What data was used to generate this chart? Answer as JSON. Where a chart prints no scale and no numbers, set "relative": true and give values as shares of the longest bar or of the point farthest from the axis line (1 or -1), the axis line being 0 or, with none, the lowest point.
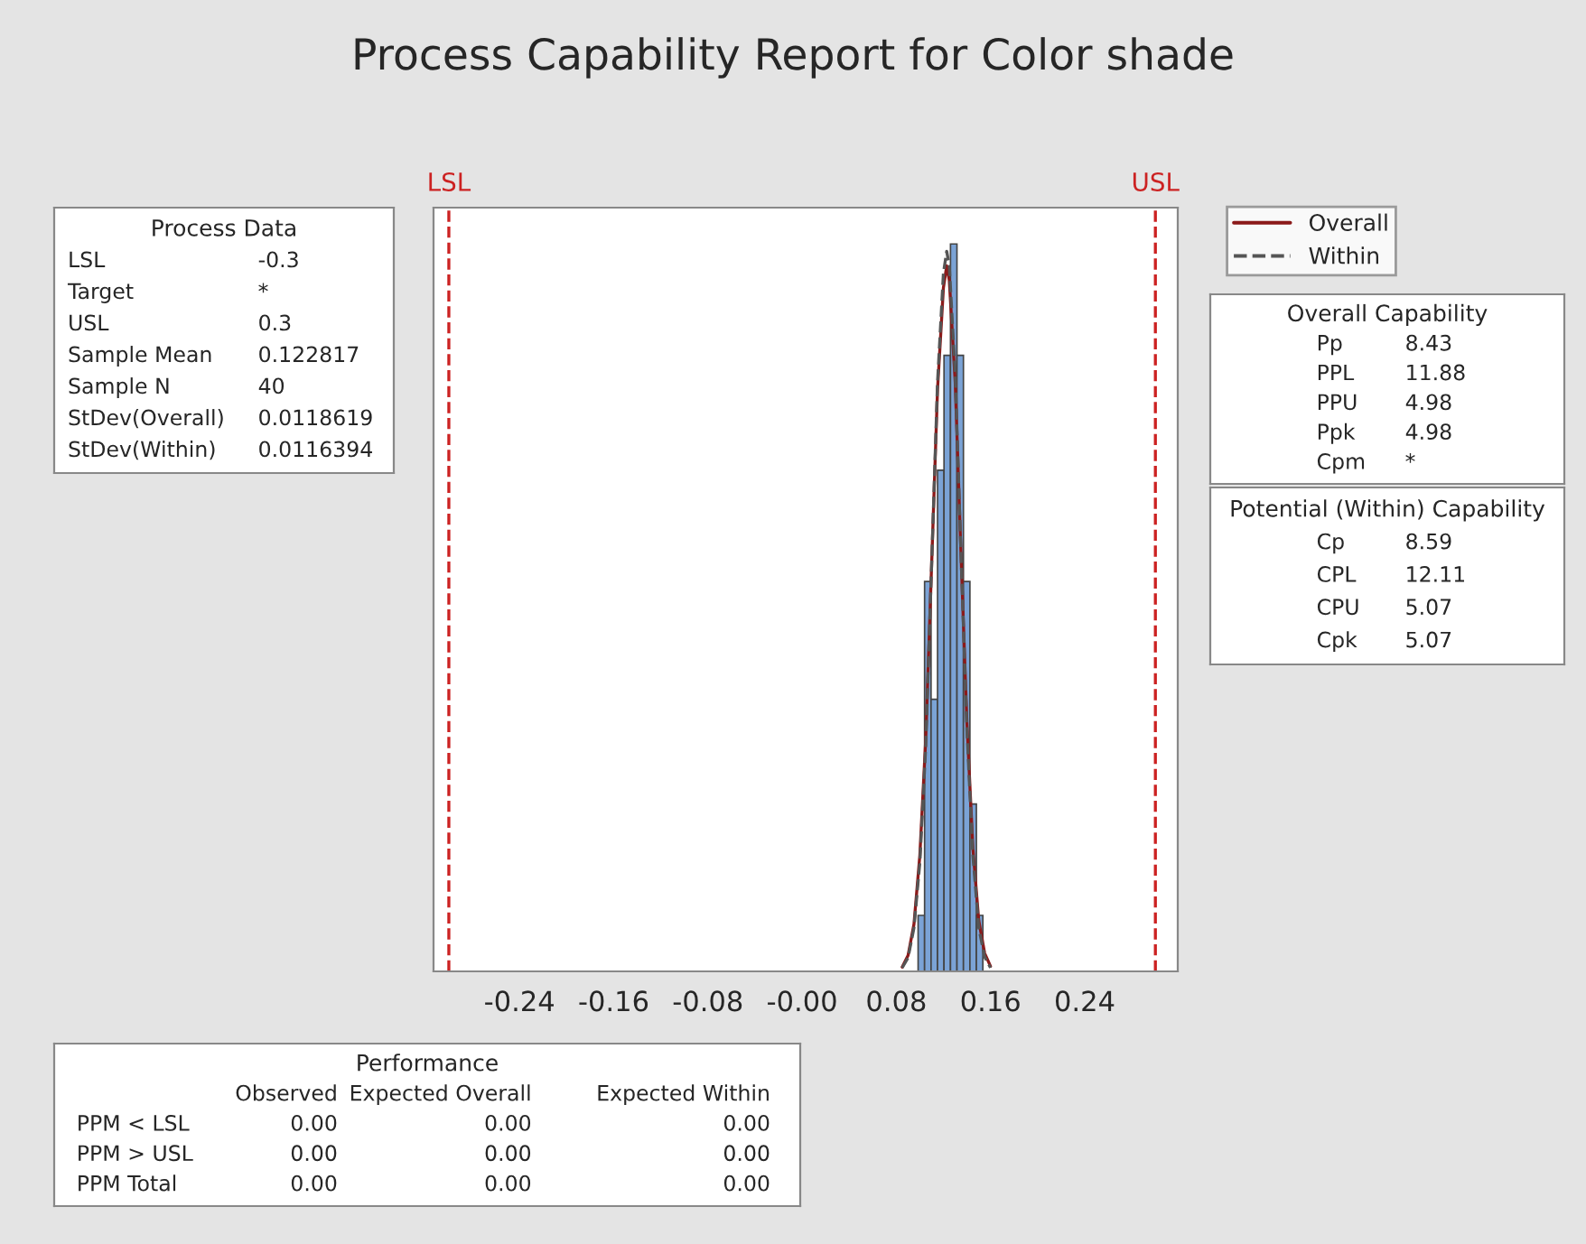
{
  "chart_data": {
    "type": "histogram",
    "title": "Process Capability Report for Color shade",
    "bins": [
      0.0985,
      0.104,
      0.1095,
      0.115,
      0.1205,
      0.126,
      0.1315,
      0.137,
      0.1425,
      0.148,
      0.1535
    ],
    "values": [
      0.077,
      0.536,
      0.374,
      0.689,
      0.847,
      1,
      0.847,
      0.536,
      0.23,
      0.077
    ],
    "color": "#7ba3d6",
    "relative": true,
    "xlim": [
      -0.313,
      0.319
    ],
    "xticks": [
      -0.24,
      -0.16,
      -0.08,
      {
        "value": 0,
        "label": "-0.00"
      },
      0.08,
      0.16,
      0.24
    ],
    "series": [
      {
        "name": "Overall",
        "type": "line",
        "color": "#8b1a1a",
        "line_style": "solid",
        "x": [
          0.085,
          0.09,
          0.095,
          0.1,
          0.105,
          0.11,
          0.115,
          0.12,
          0.1228,
          0.125,
          0.13,
          0.135,
          0.14,
          0.145,
          0.15,
          0.155,
          0.16
        ],
        "values": [
          0.006,
          0.022,
          0.065,
          0.16,
          0.32,
          0.56,
          0.8,
          0.94,
          0.97,
          0.95,
          0.81,
          0.57,
          0.34,
          0.17,
          0.07,
          0.025,
          0.007
        ]
      },
      {
        "name": "Within",
        "type": "line",
        "color": "#555555",
        "line_style": "dashed",
        "x": [
          0.085,
          0.09,
          0.095,
          0.1,
          0.105,
          0.11,
          0.115,
          0.12,
          0.1228,
          0.125,
          0.13,
          0.135,
          0.14,
          0.145,
          0.15,
          0.155,
          0.16
        ],
        "values": [
          0.005,
          0.019,
          0.06,
          0.15,
          0.31,
          0.56,
          0.81,
          0.96,
          0.99,
          0.97,
          0.82,
          0.57,
          0.33,
          0.16,
          0.06,
          0.02,
          0.005
        ]
      }
    ],
    "ref_lines": [
      {
        "axis": "x",
        "value": -0.3,
        "label": "LSL",
        "color": "#cc2222",
        "line_style": "dashed"
      },
      {
        "axis": "x",
        "value": 0.3,
        "label": "USL",
        "color": "#cc2222",
        "line_style": "dashed"
      }
    ],
    "legend": "top right",
    "grid": false,
    "annotations": [
      "Process Data\nLSL\t-0.3\nTarget\t*\nUSL\t0.3\nSample Mean\t0.122817\nSample N\t40\nStDev(Overall)\t0.0118619\nStDev(Within)\t0.0116394",
      "Overall Capability\nPp\t8.43\nPPL\t11.88\nPPU\t4.98\nPpk\t4.98\nCpm\t*",
      "Potential (Within) Capability\nCp\t8.59\nCPL\t12.11\nCPU\t5.07\nCpk\t5.07",
      "Performance\n\tObserved\tExpected Overall\tExpected Within\nPPM < LSL\t0.00\t0.00\t0.00\nPPM > USL\t0.00\t0.00\t0.00\nPPM Total\t0.00\t0.00\t0.00"
    ]
  }
}
